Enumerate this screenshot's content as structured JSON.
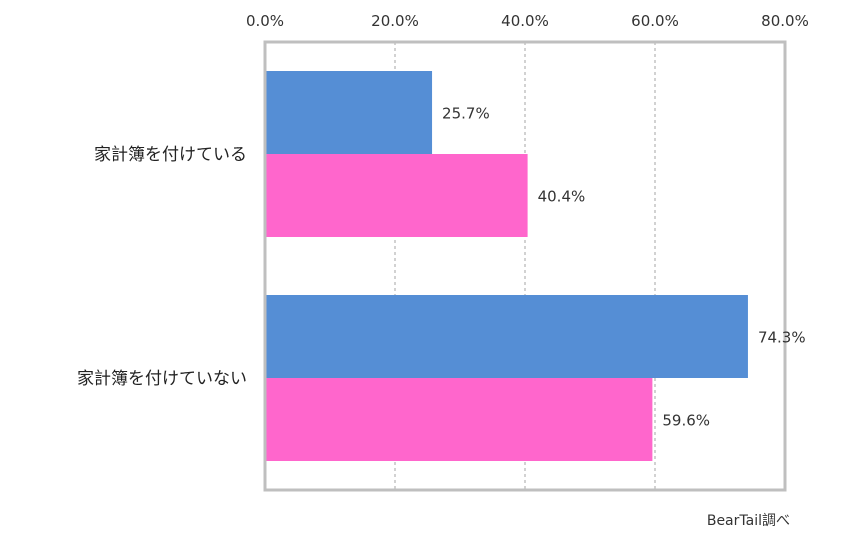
{
  "chart_data": {
    "type": "bar",
    "orientation": "horizontal",
    "categories": [
      "家計簿を付けている",
      "家計簿を付けていない"
    ],
    "series": [
      {
        "values": [
          25.7,
          74.3
        ],
        "color": "#558ED5"
      },
      {
        "values": [
          40.4,
          59.6
        ],
        "color": "#FF66CC"
      }
    ],
    "data_labels": [
      [
        "25.7%",
        "74.3%"
      ],
      [
        "40.4%",
        "59.6%"
      ]
    ],
    "xlim": [
      0,
      80
    ],
    "xticks": [
      0,
      20,
      40,
      60,
      80
    ],
    "xtick_labels": [
      "0.0%",
      "20.0%",
      "40.0%",
      "60.0%",
      "80.0%"
    ],
    "x_axis_position": "top",
    "grid": true,
    "grid_style": "dashed vertical",
    "frame_color": "#BFBFBF",
    "title": "",
    "xlabel": "",
    "ylabel": ""
  },
  "source_note": "BearTail調べ"
}
